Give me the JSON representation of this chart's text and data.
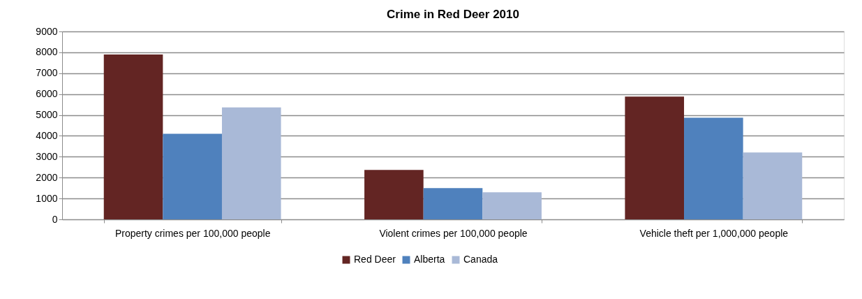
{
  "chart_data": {
    "type": "bar",
    "title": "Crime in Red Deer 2010",
    "categories": [
      "Property crimes per 100,000 people",
      "Violent crimes per 100,000 people",
      "Vehicle theft per 1,000,000 people"
    ],
    "series": [
      {
        "name": "Red Deer",
        "color": "#632523",
        "values": [
          7900,
          2370,
          5880
        ]
      },
      {
        "name": "Alberta",
        "color": "#4f81bd",
        "values": [
          4100,
          1500,
          4870
        ]
      },
      {
        "name": "Canada",
        "color": "#a9b9d7",
        "values": [
          5360,
          1300,
          3200
        ]
      }
    ],
    "ylim": [
      0,
      9000
    ],
    "yticks": [
      0,
      1000,
      2000,
      3000,
      4000,
      5000,
      6000,
      7000,
      8000,
      9000
    ],
    "grid": "y",
    "legend": "bottom"
  }
}
